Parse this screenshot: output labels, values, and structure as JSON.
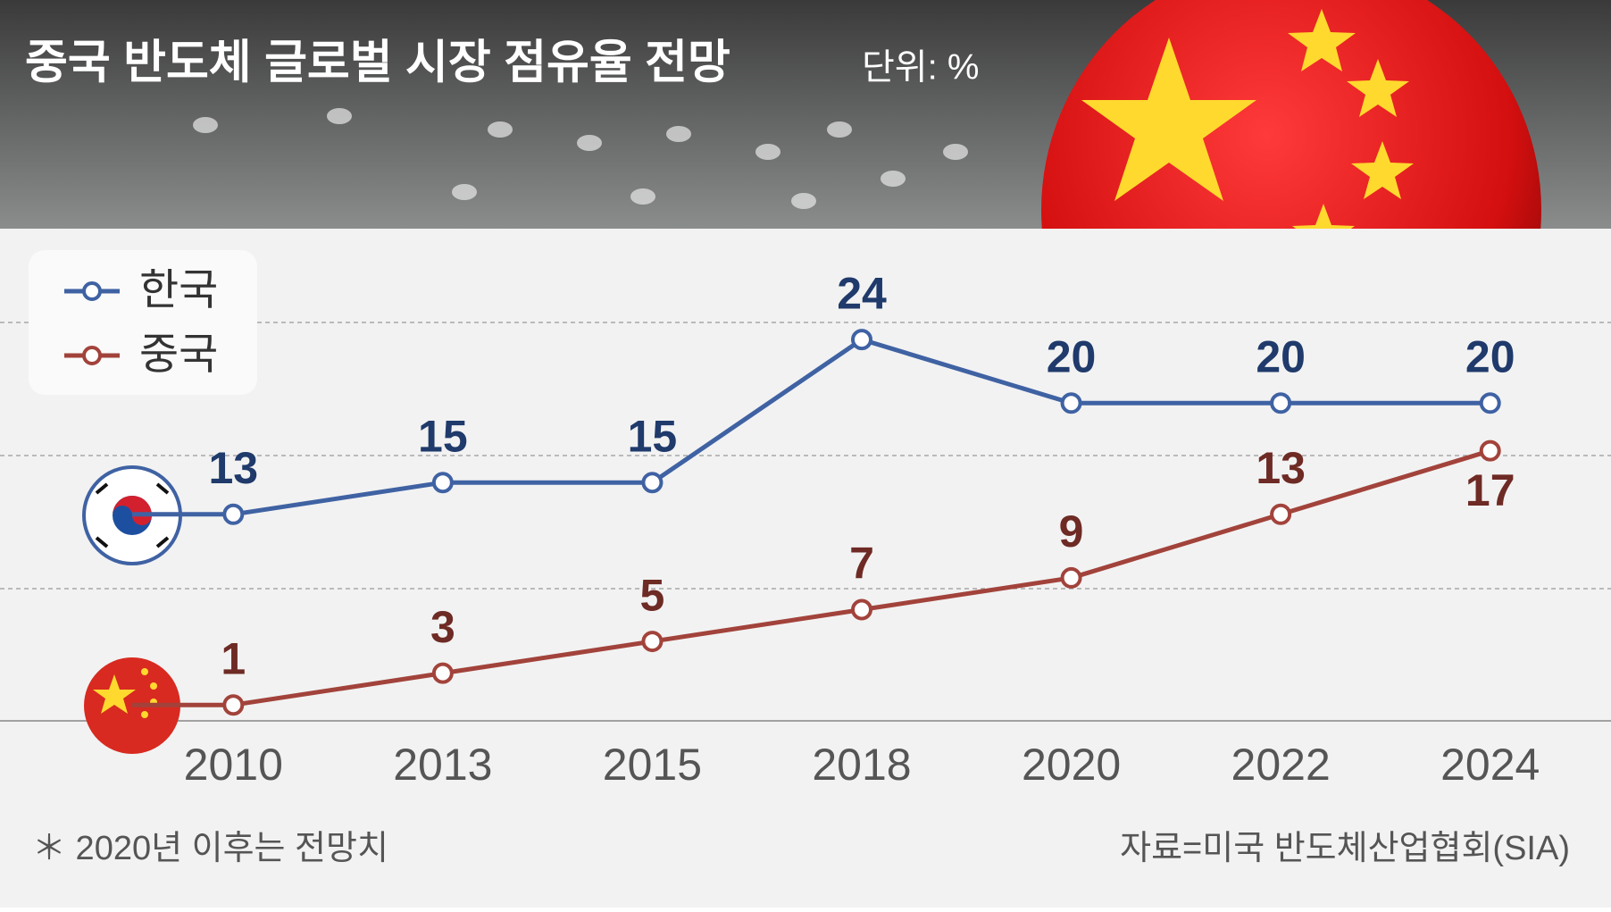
{
  "chart_data": {
    "type": "line",
    "title": "중국 반도체 글로벌 시장 점유율 전망",
    "unit": "단위: %",
    "categories": [
      "2010",
      "2013",
      "2015",
      "2018",
      "2020",
      "2022",
      "2024"
    ],
    "series": [
      {
        "name": "한국",
        "color": "#3f62a3",
        "label_color": "#1f3a6b",
        "values": [
          13,
          15,
          15,
          24,
          20,
          20,
          20
        ]
      },
      {
        "name": "중국",
        "color": "#a2433b",
        "label_color": "#6e2a24",
        "values": [
          1,
          3,
          5,
          7,
          9,
          13,
          17
        ]
      }
    ],
    "ylim": [
      0,
      28
    ],
    "footnote": "＊ 2020년 이후는 전망치",
    "source": "자료=미국 반도체산업협회(SIA)"
  }
}
